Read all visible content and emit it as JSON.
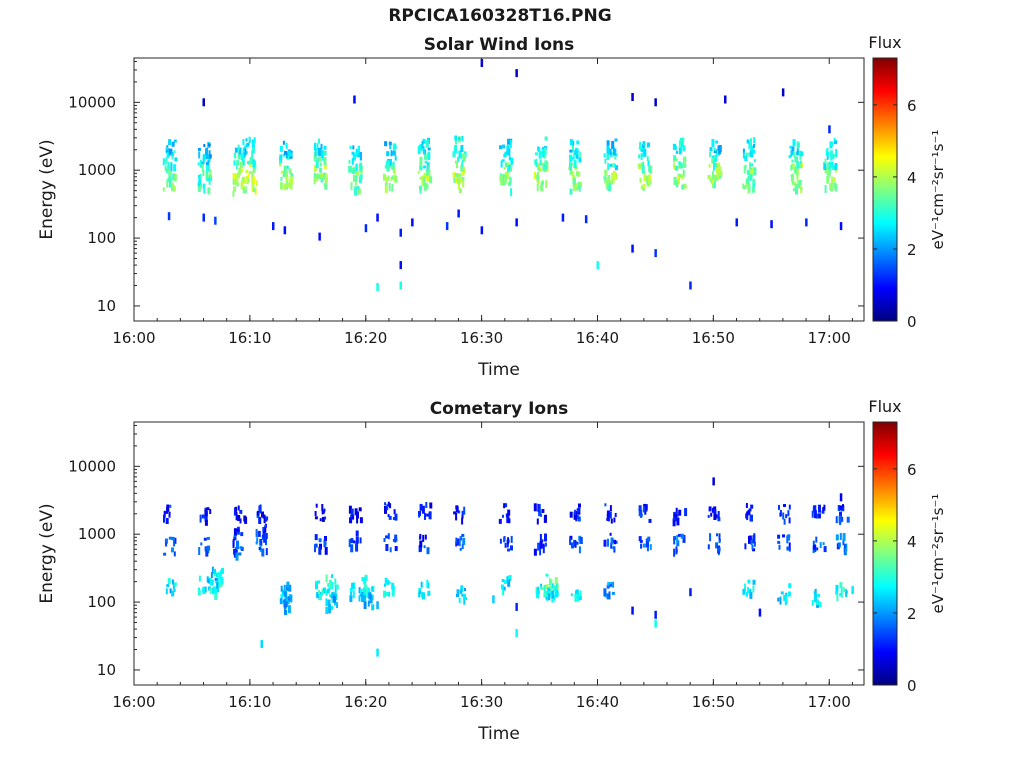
{
  "figure_title": "RPCICA160328T16.PNG",
  "colors": {
    "axis": "#262626",
    "text": "#1a1a1a",
    "colormap": [
      "#000080",
      "#0000ff",
      "#0080ff",
      "#00ffff",
      "#80ff80",
      "#ffff00",
      "#ff8000",
      "#ff0000",
      "#800000"
    ]
  },
  "chart_data": [
    {
      "type": "heatmap",
      "title": "Solar Wind Ions",
      "xlabel": "Time",
      "ylabel": "Energy (eV)",
      "yscale": "log",
      "xlim": [
        "16:00",
        "17:03"
      ],
      "ylim": [
        6,
        45000
      ],
      "x_ticks": [
        "16:00",
        "16:10",
        "16:20",
        "16:30",
        "16:40",
        "16:50",
        "17:00"
      ],
      "y_ticks": [
        "10",
        "100",
        "1000",
        "10000"
      ],
      "colorbar": {
        "label": "Flux",
        "unit": "eV⁻¹cm⁻²sr⁻¹s⁻¹",
        "range": [
          0,
          7.3
        ],
        "ticks": [
          "0",
          "2",
          "4",
          "6"
        ]
      },
      "grid": false,
      "legend": "none",
      "clusters": [
        {
          "t": "16:03",
          "e": [
            700,
            1100,
            1600,
            2400
          ],
          "flux": [
            3.5,
            3.3,
            2.8,
            2.4
          ]
        },
        {
          "t": "16:06",
          "e": [
            700,
            1000,
            1500,
            2100
          ],
          "flux": [
            3.0,
            3.2,
            2.6,
            2.2
          ]
        },
        {
          "t": "16:09",
          "e": [
            650,
            950,
            1500,
            2300
          ],
          "flux": [
            3.8,
            4.0,
            3.2,
            2.8
          ]
        },
        {
          "t": "16:10",
          "e": [
            700,
            1000,
            1500,
            2400
          ],
          "flux": [
            3.9,
            4.1,
            3.0,
            2.6
          ]
        },
        {
          "t": "16:13",
          "e": [
            750,
            1000,
            1500,
            2200
          ],
          "flux": [
            3.7,
            3.8,
            3.0,
            2.4
          ]
        },
        {
          "t": "16:16",
          "e": [
            700,
            1000,
            1600,
            2500
          ],
          "flux": [
            3.6,
            3.8,
            3.1,
            2.7
          ]
        },
        {
          "t": "16:19",
          "e": [
            700,
            1000,
            1500,
            2200
          ],
          "flux": [
            3.4,
            3.5,
            2.8,
            2.3
          ]
        },
        {
          "t": "16:22",
          "e": [
            700,
            1000,
            1500,
            2300
          ],
          "flux": [
            3.8,
            3.6,
            2.9,
            2.5
          ]
        },
        {
          "t": "16:25",
          "e": [
            700,
            1000,
            1500,
            2400
          ],
          "flux": [
            3.6,
            3.9,
            3.0,
            2.6
          ]
        },
        {
          "t": "16:28",
          "e": [
            700,
            1000,
            1600,
            2500
          ],
          "flux": [
            3.7,
            4.0,
            3.2,
            2.9
          ]
        },
        {
          "t": "16:32",
          "e": [
            700,
            1000,
            1500,
            2400
          ],
          "flux": [
            3.3,
            3.6,
            3.0,
            2.6
          ]
        },
        {
          "t": "16:35",
          "e": [
            700,
            1000,
            1500,
            2400
          ],
          "flux": [
            3.8,
            3.9,
            3.1,
            2.7
          ]
        },
        {
          "t": "16:38",
          "e": [
            700,
            1000,
            1500,
            2300
          ],
          "flux": [
            3.6,
            3.7,
            3.0,
            2.6
          ]
        },
        {
          "t": "16:41",
          "e": [
            700,
            1000,
            1500,
            2300
          ],
          "flux": [
            3.6,
            3.8,
            2.9,
            2.5
          ]
        },
        {
          "t": "16:44",
          "e": [
            700,
            1000,
            1500,
            2300
          ],
          "flux": [
            3.7,
            3.9,
            3.1,
            2.6
          ]
        },
        {
          "t": "16:47",
          "e": [
            700,
            1000,
            1500,
            2400
          ],
          "flux": [
            3.6,
            3.9,
            3.2,
            2.7
          ]
        },
        {
          "t": "16:50",
          "e": [
            700,
            1000,
            1500,
            2300
          ],
          "flux": [
            3.5,
            3.7,
            3.0,
            2.5
          ]
        },
        {
          "t": "16:53",
          "e": [
            700,
            1000,
            1500,
            2400
          ],
          "flux": [
            3.4,
            3.6,
            3.0,
            2.6
          ]
        },
        {
          "t": "16:57",
          "e": [
            700,
            1000,
            1500,
            2400
          ],
          "flux": [
            3.6,
            3.9,
            3.1,
            2.7
          ]
        },
        {
          "t": "17:00",
          "e": [
            700,
            1000,
            1500,
            2400
          ],
          "flux": [
            3.8,
            3.7,
            3.0,
            2.6
          ]
        }
      ],
      "points": [
        {
          "t": "16:03",
          "e": 210,
          "flux": 1.3
        },
        {
          "t": "16:06",
          "e": 200,
          "flux": 1.2
        },
        {
          "t": "16:07",
          "e": 180,
          "flux": 1.4
        },
        {
          "t": "16:12",
          "e": 150,
          "flux": 1.1
        },
        {
          "t": "16:13",
          "e": 130,
          "flux": 1.0
        },
        {
          "t": "16:16",
          "e": 105,
          "flux": 1.0
        },
        {
          "t": "16:20",
          "e": 140,
          "flux": 1.2
        },
        {
          "t": "16:21",
          "e": 200,
          "flux": 1.0
        },
        {
          "t": "16:23",
          "e": 120,
          "flux": 1.1
        },
        {
          "t": "16:24",
          "e": 170,
          "flux": 1.0
        },
        {
          "t": "16:27",
          "e": 150,
          "flux": 1.3
        },
        {
          "t": "16:28",
          "e": 230,
          "flux": 1.1
        },
        {
          "t": "16:30",
          "e": 130,
          "flux": 1.0
        },
        {
          "t": "16:33",
          "e": 170,
          "flux": 1.0
        },
        {
          "t": "16:37",
          "e": 200,
          "flux": 1.1
        },
        {
          "t": "16:39",
          "e": 190,
          "flux": 1.2
        },
        {
          "t": "16:43",
          "e": 70,
          "flux": 1.0
        },
        {
          "t": "16:45",
          "e": 60,
          "flux": 1.3
        },
        {
          "t": "16:48",
          "e": 20,
          "flux": 1.2
        },
        {
          "t": "16:52",
          "e": 170,
          "flux": 1.1
        },
        {
          "t": "16:55",
          "e": 160,
          "flux": 1.0
        },
        {
          "t": "16:58",
          "e": 170,
          "flux": 1.2
        },
        {
          "t": "17:01",
          "e": 150,
          "flux": 1.0
        },
        {
          "t": "16:21",
          "e": 19,
          "flux": 2.9
        },
        {
          "t": "16:23",
          "e": 20,
          "flux": 2.9
        },
        {
          "t": "16:40",
          "e": 40,
          "flux": 2.9
        },
        {
          "t": "16:23",
          "e": 40,
          "flux": 1.0
        },
        {
          "t": "16:19",
          "e": 11000,
          "flux": 1.0
        },
        {
          "t": "16:06",
          "e": 10000,
          "flux": 0.5
        },
        {
          "t": "16:33",
          "e": 27000,
          "flux": 0.5
        },
        {
          "t": "16:30",
          "e": 38000,
          "flux": 0.7
        },
        {
          "t": "16:43",
          "e": 12000,
          "flux": 0.5
        },
        {
          "t": "16:45",
          "e": 10000,
          "flux": 0.5
        },
        {
          "t": "16:51",
          "e": 11000,
          "flux": 0.7
        },
        {
          "t": "16:56",
          "e": 14000,
          "flux": 0.5
        },
        {
          "t": "17:00",
          "e": 4000,
          "flux": 1.2
        }
      ]
    },
    {
      "type": "heatmap",
      "title": "Cometary Ions",
      "xlabel": "Time",
      "ylabel": "Energy (eV)",
      "yscale": "log",
      "xlim": [
        "16:00",
        "17:03"
      ],
      "ylim": [
        6,
        45000
      ],
      "x_ticks": [
        "16:00",
        "16:10",
        "16:20",
        "16:30",
        "16:40",
        "16:50",
        "17:00"
      ],
      "y_ticks": [
        "10",
        "100",
        "1000",
        "10000"
      ],
      "colorbar": {
        "label": "Flux",
        "unit": "eV⁻¹cm⁻²sr⁻¹s⁻¹",
        "range": [
          0,
          7.3
        ],
        "ticks": [
          "0",
          "2",
          "4",
          "6"
        ]
      },
      "grid": false,
      "legend": "none",
      "clusters": [
        {
          "t": "16:03",
          "e": [
            700,
            2200,
            180
          ],
          "flux": [
            1.5,
            1.0,
            2.5
          ]
        },
        {
          "t": "16:06",
          "e": [
            700,
            2000,
            200
          ],
          "flux": [
            1.3,
            0.9,
            2.6
          ]
        },
        {
          "t": "16:07",
          "e": [
            220,
            170,
            260
          ],
          "flux": [
            3.0,
            2.8,
            2.4
          ]
        },
        {
          "t": "16:09",
          "e": [
            700,
            1000,
            2200
          ],
          "flux": [
            1.5,
            1.3,
            1.0
          ]
        },
        {
          "t": "16:11",
          "e": [
            800,
            1100,
            2200
          ],
          "flux": [
            1.6,
            1.4,
            1.1
          ]
        },
        {
          "t": "16:13",
          "e": [
            130,
            100,
            160
          ],
          "flux": [
            2.4,
            2.2,
            2.0
          ]
        },
        {
          "t": "16:16",
          "e": [
            800,
            2200,
            170
          ],
          "flux": [
            1.2,
            1.0,
            2.8
          ]
        },
        {
          "t": "16:17",
          "e": [
            200,
            130,
            110
          ],
          "flux": [
            3.0,
            2.5,
            2.2
          ]
        },
        {
          "t": "16:19",
          "e": [
            900,
            2200,
            160
          ],
          "flux": [
            1.1,
            0.9,
            2.4
          ]
        },
        {
          "t": "16:20",
          "e": [
            200,
            140,
            110
          ],
          "flux": [
            2.9,
            2.6,
            2.2
          ]
        },
        {
          "t": "16:22",
          "e": [
            800,
            2300,
            180
          ],
          "flux": [
            1.3,
            1.0,
            2.6
          ]
        },
        {
          "t": "16:25",
          "e": [
            800,
            2400,
            170
          ],
          "flux": [
            1.2,
            1.0,
            2.5
          ]
        },
        {
          "t": "16:28",
          "e": [
            800,
            2200,
            140
          ],
          "flux": [
            1.4,
            1.1,
            2.2
          ]
        },
        {
          "t": "16:32",
          "e": [
            800,
            2200,
            200
          ],
          "flux": [
            1.3,
            1.0,
            2.6
          ]
        },
        {
          "t": "16:35",
          "e": [
            800,
            2200,
            150
          ],
          "flux": [
            1.4,
            1.1,
            2.9
          ]
        },
        {
          "t": "16:36",
          "e": [
            200,
            150,
            130
          ],
          "flux": [
            3.4,
            3.0,
            2.6
          ]
        },
        {
          "t": "16:38",
          "e": [
            800,
            2200,
            150
          ],
          "flux": [
            1.4,
            1.0,
            2.7
          ]
        },
        {
          "t": "16:41",
          "e": [
            800,
            2200,
            170
          ],
          "flux": [
            1.3,
            1.0,
            2.0
          ]
        },
        {
          "t": "16:44",
          "e": [
            800,
            2200
          ],
          "flux": [
            1.5,
            1.1
          ]
        },
        {
          "t": "16:47",
          "e": [
            800,
            2200
          ],
          "flux": [
            1.6,
            1.2
          ]
        },
        {
          "t": "16:50",
          "e": [
            800,
            2200
          ],
          "flux": [
            1.4,
            1.0
          ]
        },
        {
          "t": "16:53",
          "e": [
            800,
            2200,
            170
          ],
          "flux": [
            1.3,
            1.0,
            2.6
          ]
        },
        {
          "t": "16:56",
          "e": [
            800,
            2200,
            150
          ],
          "flux": [
            1.4,
            1.1,
            2.5
          ]
        },
        {
          "t": "16:59",
          "e": [
            800,
            2200,
            130
          ],
          "flux": [
            1.5,
            1.2,
            2.4
          ]
        },
        {
          "t": "17:01",
          "e": [
            800,
            2200,
            170
          ],
          "flux": [
            1.6,
            1.2,
            2.8
          ]
        }
      ],
      "points": [
        {
          "t": "16:11",
          "e": 24,
          "flux": 2.5
        },
        {
          "t": "16:21",
          "e": 18,
          "flux": 2.6
        },
        {
          "t": "16:33",
          "e": 35,
          "flux": 2.8
        },
        {
          "t": "16:45",
          "e": 48,
          "flux": 2.8
        },
        {
          "t": "16:43",
          "e": 75,
          "flux": 1.0
        },
        {
          "t": "16:45",
          "e": 65,
          "flux": 1.1
        },
        {
          "t": "16:33",
          "e": 85,
          "flux": 1.2
        },
        {
          "t": "16:50",
          "e": 6000,
          "flux": 0.6
        },
        {
          "t": "17:01",
          "e": 3500,
          "flux": 0.8
        },
        {
          "t": "16:54",
          "e": 70,
          "flux": 1.0
        },
        {
          "t": "16:31",
          "e": 110,
          "flux": 2.4
        },
        {
          "t": "17:02",
          "e": 150,
          "flux": 2.6
        },
        {
          "t": "16:48",
          "e": 140,
          "flux": 1.1
        },
        {
          "t": "16:21",
          "e": 90,
          "flux": 2.2
        }
      ]
    }
  ]
}
